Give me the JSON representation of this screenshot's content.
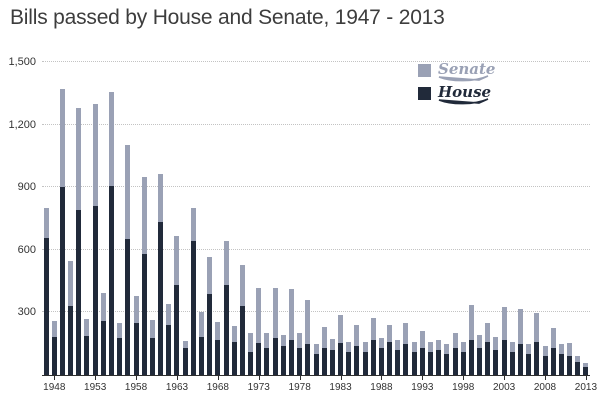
{
  "title": "Bills passed by House and Senate, 1947 - 2013",
  "legend": {
    "senate_label": "Senate",
    "house_label": "House"
  },
  "colors": {
    "senate": "#9aa1b5",
    "house": "#212a3a",
    "axis": "#2e2e2e",
    "grid": "#c3c3c3",
    "title_text": "#3d3d3d",
    "tick_text": "#333333"
  },
  "chart_data": {
    "type": "bar",
    "stacked": true,
    "title": "Bills passed by House and Senate, 1947 - 2013",
    "xlabel": "",
    "ylabel": "",
    "ylim": [
      0,
      1500
    ],
    "yticks": [
      300,
      600,
      900,
      1200,
      1500
    ],
    "ytick_labels": [
      "300",
      "600",
      "900",
      "1,200",
      "1,500"
    ],
    "xticks": [
      1948,
      1953,
      1958,
      1963,
      1968,
      1973,
      1978,
      1983,
      1988,
      1993,
      1998,
      2003,
      2008,
      2013
    ],
    "grid": "dotted-horizontal",
    "legend_position": "top-right",
    "x": [
      1947,
      1948,
      1949,
      1950,
      1951,
      1952,
      1953,
      1954,
      1955,
      1956,
      1957,
      1958,
      1959,
      1960,
      1961,
      1962,
      1963,
      1964,
      1965,
      1966,
      1967,
      1968,
      1969,
      1970,
      1971,
      1972,
      1973,
      1974,
      1975,
      1976,
      1977,
      1978,
      1979,
      1980,
      1981,
      1982,
      1983,
      1984,
      1985,
      1986,
      1987,
      1988,
      1989,
      1990,
      1991,
      1992,
      1993,
      1994,
      1995,
      1996,
      1997,
      1998,
      1999,
      2000,
      2001,
      2002,
      2003,
      2004,
      2005,
      2006,
      2007,
      2008,
      2009,
      2010,
      2011,
      2012,
      2013
    ],
    "series": [
      {
        "name": "House",
        "color": "#212a3a",
        "values": [
          655,
          180,
          900,
          330,
          790,
          185,
          810,
          260,
          905,
          175,
          650,
          250,
          580,
          175,
          735,
          240,
          430,
          130,
          640,
          180,
          390,
          170,
          430,
          160,
          330,
          110,
          155,
          130,
          175,
          140,
          170,
          130,
          150,
          100,
          130,
          120,
          155,
          110,
          140,
          110,
          170,
          130,
          160,
          120,
          150,
          110,
          130,
          110,
          120,
          100,
          130,
          110,
          170,
          130,
          160,
          120,
          170,
          110,
          150,
          100,
          160,
          90,
          130,
          100,
          90,
          60,
          40
        ]
      },
      {
        "name": "Senate",
        "color": "#9aa1b5",
        "values": [
          145,
          75,
          470,
          215,
          490,
          80,
          490,
          135,
          450,
          70,
          450,
          130,
          370,
          85,
          230,
          100,
          235,
          35,
          160,
          120,
          175,
          85,
          210,
          75,
          195,
          90,
          265,
          70,
          240,
          55,
          245,
          70,
          210,
          50,
          100,
          55,
          135,
          50,
          100,
          50,
          105,
          50,
          80,
          50,
          100,
          50,
          80,
          50,
          50,
          50,
          70,
          50,
          170,
          60,
          90,
          60,
          160,
          50,
          170,
          50,
          140,
          50,
          95,
          50,
          60,
          30,
          20
        ]
      }
    ]
  }
}
